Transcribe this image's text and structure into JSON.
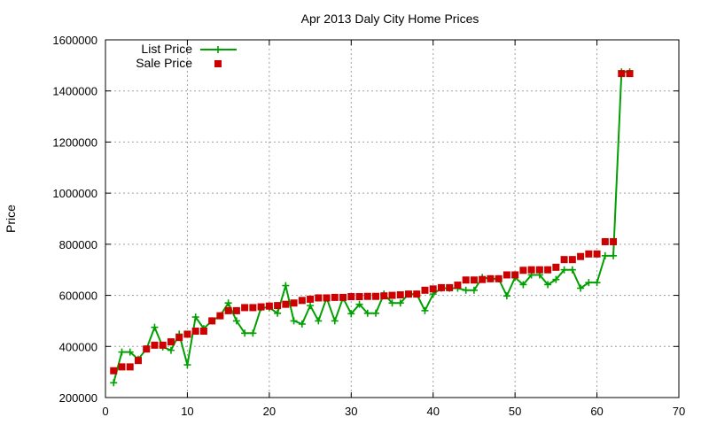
{
  "chart_data": {
    "type": "line",
    "title": "Apr 2013 Daly City Home Prices",
    "xlabel": "",
    "ylabel": "Price",
    "xlim": [
      0,
      70
    ],
    "ylim": [
      200000,
      1600000
    ],
    "x_ticks": [
      0,
      10,
      20,
      30,
      40,
      50,
      60,
      70
    ],
    "y_ticks": [
      200000,
      400000,
      600000,
      800000,
      1000000,
      1200000,
      1400000,
      1600000
    ],
    "grid": true,
    "legend_position": "top-left",
    "x": [
      1,
      2,
      3,
      4,
      5,
      6,
      7,
      8,
      9,
      10,
      11,
      12,
      13,
      14,
      15,
      16,
      17,
      18,
      19,
      20,
      21,
      22,
      23,
      24,
      25,
      26,
      27,
      28,
      29,
      30,
      31,
      32,
      33,
      34,
      35,
      36,
      37,
      38,
      39,
      40,
      41,
      42,
      43,
      44,
      45,
      46,
      47,
      48,
      49,
      50,
      51,
      52,
      53,
      54,
      55,
      56,
      57,
      58,
      59,
      60,
      61,
      62,
      63,
      64
    ],
    "series": [
      {
        "name": "List Price",
        "style": "line-plus",
        "color": "#00a000",
        "values": [
          258000,
          378000,
          378000,
          350000,
          390000,
          475000,
          398000,
          385000,
          448000,
          328000,
          515000,
          470000,
          500000,
          520000,
          570000,
          500000,
          452000,
          452000,
          552000,
          552000,
          530000,
          638000,
          500000,
          488000,
          560000,
          500000,
          590000,
          500000,
          590000,
          528000,
          565000,
          530000,
          530000,
          605000,
          570000,
          570000,
          605000,
          605000,
          540000,
          605000,
          628000,
          628000,
          628000,
          620000,
          620000,
          670000,
          665000,
          665000,
          598000,
          670000,
          642000,
          680000,
          680000,
          642000,
          662000,
          700000,
          700000,
          628000,
          650000,
          650000,
          755000,
          755000,
          1475000,
          1475000
        ]
      },
      {
        "name": "Sale Price",
        "style": "square",
        "color": "#cc0000",
        "values": [
          305000,
          320000,
          320000,
          345000,
          390000,
          405000,
          405000,
          418000,
          435000,
          448000,
          460000,
          460000,
          500000,
          520000,
          540000,
          540000,
          552000,
          552000,
          555000,
          558000,
          560000,
          565000,
          570000,
          580000,
          585000,
          590000,
          590000,
          592000,
          592000,
          595000,
          595000,
          596000,
          596000,
          598000,
          600000,
          602000,
          605000,
          605000,
          620000,
          625000,
          630000,
          630000,
          640000,
          660000,
          660000,
          662000,
          665000,
          665000,
          680000,
          680000,
          698000,
          700000,
          700000,
          700000,
          710000,
          740000,
          740000,
          752000,
          762000,
          762000,
          810000,
          810000,
          1468000,
          1468000
        ]
      }
    ]
  }
}
